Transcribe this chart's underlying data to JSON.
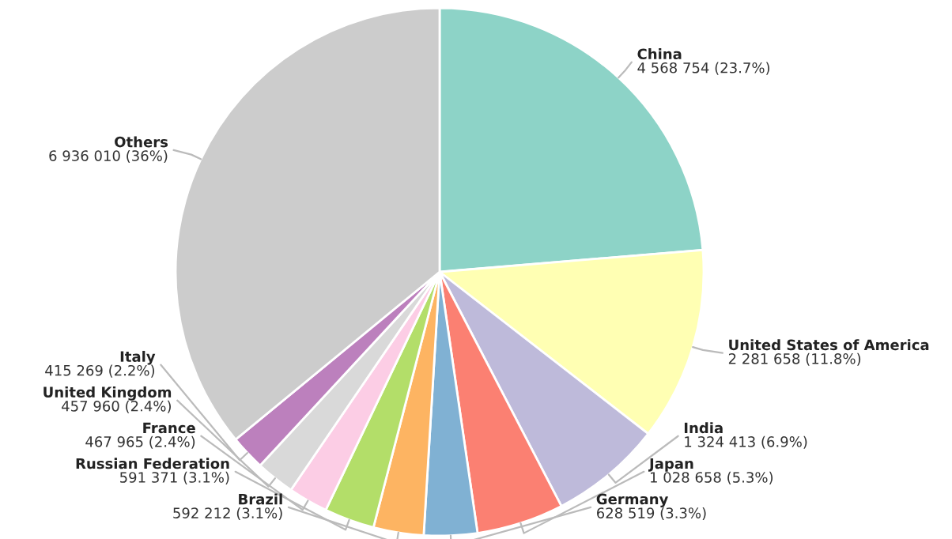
{
  "chart_data": {
    "type": "pie",
    "categories": [
      "China",
      "United States of America",
      "India",
      "Japan",
      "Germany",
      "Brazil",
      "Russian Federation",
      "France",
      "United Kingdom",
      "Italy",
      "Others"
    ],
    "values": [
      4568754,
      2281658,
      1324413,
      1028658,
      628519,
      592212,
      591371,
      467965,
      457960,
      415269,
      6936010
    ],
    "value_labels": [
      "4 568 754 (23.7%)",
      "2 281 658 (11.8%)",
      "1 324 413 (6.9%)",
      "1 028 658 (5.3%)",
      "628 519 (3.3%)",
      "592 212 (3.1%)",
      "591 371 (3.1%)",
      "467 965 (2.4%)",
      "457 960 (2.4%)",
      "415 269 (2.2%)",
      "6 936 010 (36%)"
    ],
    "colors": [
      "#8dd3c7",
      "#ffffb3",
      "#bebada",
      "#fb8072",
      "#80b1d3",
      "#fdb462",
      "#b3de69",
      "#fccde5",
      "#d9d9d9",
      "#bc80bd",
      "#cccccc"
    ]
  }
}
